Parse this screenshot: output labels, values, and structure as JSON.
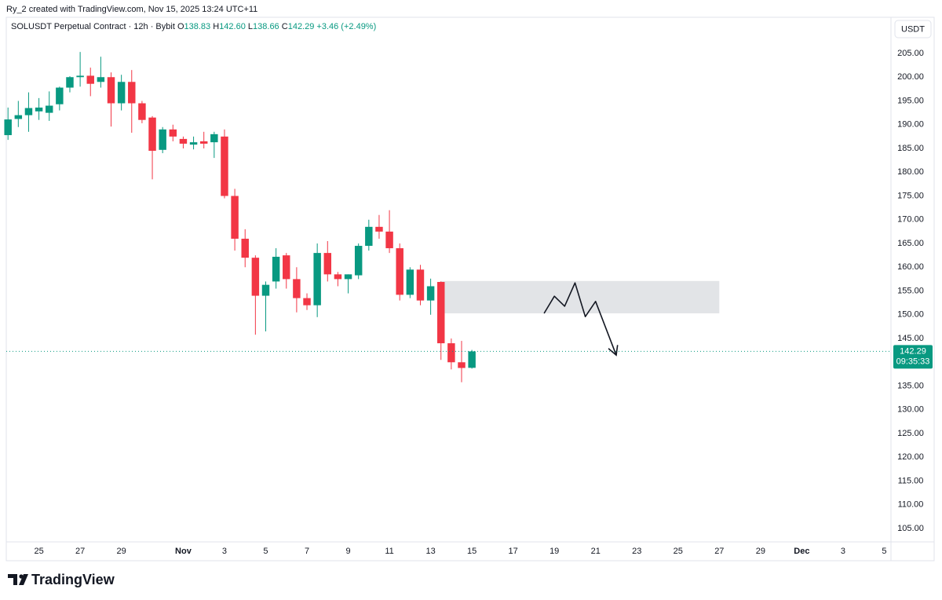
{
  "chart_data": {
    "type": "candlestick",
    "credit": "Ry_2 created with TradingView.com, Nov 15, 2025 13:24 UTC+11",
    "symbol": "SOLUSDT Perpetual Contract · 12h · Bybit",
    "ohlc_legend": [
      {
        "label": "O",
        "value": "138.83"
      },
      {
        "label": "H",
        "value": "142.60"
      },
      {
        "label": "L",
        "value": "138.66"
      },
      {
        "label": "C",
        "value": "142.29"
      }
    ],
    "change": "+3.46 (+2.49%)",
    "currency": "USDT",
    "brand": "TradingView",
    "up_color": "#089981",
    "down_color": "#f23645",
    "x": [
      "2025-10-23T12:00",
      "2025-10-24T00:00",
      "2025-10-24T12:00",
      "2025-10-25T00:00",
      "2025-10-25T12:00",
      "2025-10-26T00:00",
      "2025-10-26T12:00",
      "2025-10-27T00:00",
      "2025-10-27T12:00",
      "2025-10-28T00:00",
      "2025-10-28T12:00",
      "2025-10-29T00:00",
      "2025-10-29T12:00",
      "2025-10-30T00:00",
      "2025-10-30T12:00",
      "2025-10-31T00:00",
      "2025-10-31T12:00",
      "2025-11-01T00:00",
      "2025-11-01T12:00",
      "2025-11-02T00:00",
      "2025-11-02T12:00",
      "2025-11-03T00:00",
      "2025-11-03T12:00",
      "2025-11-04T00:00",
      "2025-11-04T12:00",
      "2025-11-05T00:00",
      "2025-11-05T12:00",
      "2025-11-06T00:00",
      "2025-11-06T12:00",
      "2025-11-07T00:00",
      "2025-11-07T12:00",
      "2025-11-08T00:00",
      "2025-11-08T12:00",
      "2025-11-09T00:00",
      "2025-11-09T12:00",
      "2025-11-10T00:00",
      "2025-11-10T12:00",
      "2025-11-11T00:00",
      "2025-11-11T12:00",
      "2025-11-12T00:00",
      "2025-11-12T12:00",
      "2025-11-13T00:00",
      "2025-11-13T12:00",
      "2025-11-14T00:00",
      "2025-11-14T12:00",
      "2025-11-15T00:00"
    ],
    "open": [
      187.8,
      191.2,
      192.0,
      192.8,
      192.5,
      194.3,
      197.8,
      200.0,
      200.3,
      199.0,
      200.0,
      194.5,
      199.0,
      194.5,
      191.5,
      184.7,
      189.0,
      187.0,
      185.8,
      186.5,
      186.3,
      187.5,
      175.0,
      166.0,
      162.0,
      154.0,
      157.0,
      162.5,
      157.5,
      153.5,
      152.0,
      163.0,
      158.5,
      157.5,
      158.3,
      164.5,
      168.5,
      167.5,
      164.0,
      154.2,
      159.5,
      153.0,
      156.9,
      144.0,
      140.0,
      138.83
    ],
    "high": [
      193.6,
      195.0,
      196.8,
      195.6,
      197.0,
      198.0,
      200.2,
      205.3,
      202.0,
      204.3,
      201.0,
      200.5,
      201.5,
      195.0,
      191.8,
      189.5,
      190.0,
      187.5,
      187.5,
      188.5,
      188.5,
      189.0,
      176.5,
      168.0,
      162.5,
      157.0,
      164.0,
      163.0,
      160.0,
      154.5,
      165.0,
      165.5,
      159.0,
      158.5,
      165.0,
      170.0,
      171.0,
      172.0,
      165.0,
      160.0,
      160.5,
      157.6,
      157.0,
      145.0,
      144.5,
      142.6
    ],
    "low": [
      186.8,
      189.5,
      188.5,
      191.0,
      190.8,
      193.0,
      196.8,
      198.0,
      196.0,
      197.8,
      189.6,
      193.0,
      188.3,
      190.3,
      178.5,
      184.0,
      186.5,
      185.0,
      184.8,
      185.0,
      183.0,
      174.5,
      163.5,
      160.0,
      145.8,
      146.5,
      155.5,
      155.5,
      150.5,
      151.0,
      149.5,
      157.0,
      156.0,
      154.5,
      157.5,
      163.5,
      166.0,
      163.0,
      153.0,
      153.5,
      152.0,
      150.0,
      140.5,
      138.5,
      135.8,
      138.66
    ],
    "close": [
      191.1,
      192.0,
      193.5,
      193.6,
      194.0,
      197.8,
      200.0,
      200.3,
      198.6,
      200.0,
      194.5,
      199.0,
      194.5,
      191.0,
      184.5,
      189.0,
      187.5,
      186.0,
      186.3,
      186.0,
      188.0,
      175.0,
      166.0,
      162.0,
      154.0,
      156.3,
      162.2,
      157.5,
      153.5,
      152.0,
      163.0,
      158.5,
      157.5,
      158.5,
      164.5,
      168.5,
      167.5,
      164.0,
      154.2,
      159.5,
      153.0,
      156.0,
      144.0,
      140.0,
      138.8,
      142.29
    ],
    "xlim": [
      "2025-10-23T10:00",
      "2025-12-05T06:00"
    ],
    "xticks": [
      {
        "value": "2025-10-25T00:00",
        "label": "25"
      },
      {
        "value": "2025-10-27T00:00",
        "label": "27"
      },
      {
        "value": "2025-10-29T00:00",
        "label": "29"
      },
      {
        "value": "2025-11-01T00:00",
        "label": "Nov"
      },
      {
        "value": "2025-11-03T00:00",
        "label": "3"
      },
      {
        "value": "2025-11-05T00:00",
        "label": "5"
      },
      {
        "value": "2025-11-07T00:00",
        "label": "7"
      },
      {
        "value": "2025-11-09T00:00",
        "label": "9"
      },
      {
        "value": "2025-11-11T00:00",
        "label": "11"
      },
      {
        "value": "2025-11-13T00:00",
        "label": "13"
      },
      {
        "value": "2025-11-15T00:00",
        "label": "15"
      },
      {
        "value": "2025-11-17T00:00",
        "label": "17"
      },
      {
        "value": "2025-11-19T00:00",
        "label": "19"
      },
      {
        "value": "2025-11-21T00:00",
        "label": "21"
      },
      {
        "value": "2025-11-23T00:00",
        "label": "23"
      },
      {
        "value": "2025-11-25T00:00",
        "label": "25"
      },
      {
        "value": "2025-11-27T00:00",
        "label": "27"
      },
      {
        "value": "2025-11-29T00:00",
        "label": "29"
      },
      {
        "value": "2025-12-01T00:00",
        "label": "Dec"
      },
      {
        "value": "2025-12-03T00:00",
        "label": "3"
      },
      {
        "value": "2025-12-05T00:00",
        "label": "5"
      }
    ],
    "ylim": [
      102.2,
      212.6
    ],
    "yticks": [
      {
        "value": 105,
        "label": "105.00"
      },
      {
        "value": 110,
        "label": "110.00"
      },
      {
        "value": 115,
        "label": "115.00"
      },
      {
        "value": 120,
        "label": "120.00"
      },
      {
        "value": 125,
        "label": "125.00"
      },
      {
        "value": 130,
        "label": "130.00"
      },
      {
        "value": 135,
        "label": "135.00"
      },
      {
        "value": 140,
        "label": "140.00"
      },
      {
        "value": 145,
        "label": "145.00"
      },
      {
        "value": 150,
        "label": "150.00"
      },
      {
        "value": 155,
        "label": "155.00"
      },
      {
        "value": 160,
        "label": "160.00"
      },
      {
        "value": 165,
        "label": "165.00"
      },
      {
        "value": 170,
        "label": "170.00"
      },
      {
        "value": 175,
        "label": "175.00"
      },
      {
        "value": 180,
        "label": "180.00"
      },
      {
        "value": 185,
        "label": "185.00"
      },
      {
        "value": 190,
        "label": "190.00"
      },
      {
        "value": 195,
        "label": "195.00"
      },
      {
        "value": 200,
        "label": "200.00"
      },
      {
        "value": 205,
        "label": "205.00"
      }
    ],
    "grid": false,
    "last_price": {
      "value": 142.29,
      "label": "142.29"
    },
    "countdown": "09:35:33",
    "zone": {
      "x": [
        "2025-11-13T11:00",
        "2025-11-27T00:00"
      ],
      "y": [
        157.1,
        150.3
      ],
      "color": "#dfe1e4"
    },
    "projection": {
      "x": [
        "2025-11-18T12:00",
        "2025-11-19T00:00",
        "2025-11-19T12:00",
        "2025-11-20T00:00",
        "2025-11-20T12:00",
        "2025-11-21T00:00",
        "2025-11-22T00:00"
      ],
      "y": [
        150.3,
        153.9,
        151.8,
        156.7,
        149.6,
        152.8,
        141.5
      ],
      "color": "#131722"
    }
  }
}
